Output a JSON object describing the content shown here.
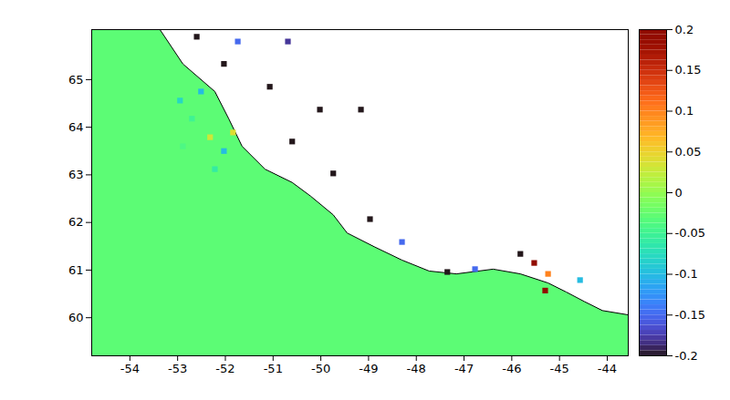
{
  "chart_data": {
    "type": "map",
    "xlim": [
      -54.8,
      -43.56
    ],
    "ylim": [
      59.2,
      66.05
    ],
    "xticks": [
      -54,
      -53,
      -52,
      -51,
      -50,
      -49,
      -48,
      -47,
      -46,
      -45,
      -44
    ],
    "yticks": [
      60,
      61,
      62,
      63,
      64,
      65
    ],
    "color_range": [
      -0.2,
      0.2
    ],
    "color_ticks": [
      -0.2,
      -0.15,
      -0.1,
      -0.05,
      0,
      0.05,
      0.1,
      0.15,
      0.2
    ],
    "sea_value": -0.03,
    "coastline": [
      [
        -53.37,
        66.05
      ],
      [
        -52.89,
        65.33
      ],
      [
        -52.22,
        64.75
      ],
      [
        -51.93,
        64.18
      ],
      [
        -51.65,
        63.6
      ],
      [
        -51.17,
        63.12
      ],
      [
        -50.6,
        62.84
      ],
      [
        -50.21,
        62.55
      ],
      [
        -49.74,
        62.16
      ],
      [
        -49.45,
        61.78
      ],
      [
        -48.88,
        61.49
      ],
      [
        -48.3,
        61.21
      ],
      [
        -47.73,
        60.98
      ],
      [
        -47.16,
        60.92
      ],
      [
        -46.39,
        61.02
      ],
      [
        -45.82,
        60.92
      ],
      [
        -45.24,
        60.73
      ],
      [
        -44.86,
        60.54
      ],
      [
        -44.48,
        60.34
      ],
      [
        -44.1,
        60.15
      ],
      [
        -43.56,
        60.06
      ]
    ],
    "cells": [
      [
        -52.6,
        65.9,
        -0.2
      ],
      [
        -51.74,
        65.8,
        -0.15
      ],
      [
        -50.69,
        65.8,
        -0.18
      ],
      [
        -52.03,
        65.33,
        -0.2
      ],
      [
        -51.07,
        64.85,
        -0.2
      ],
      [
        -50.02,
        64.37,
        -0.2
      ],
      [
        -49.16,
        64.37,
        -0.2
      ],
      [
        -50.6,
        63.7,
        -0.2
      ],
      [
        -49.74,
        63.03,
        -0.2
      ],
      [
        -48.97,
        62.07,
        -0.2
      ],
      [
        -48.3,
        61.59,
        -0.15
      ],
      [
        -47.35,
        60.96,
        -0.2
      ],
      [
        -46.77,
        61.02,
        -0.15
      ],
      [
        -45.82,
        61.34,
        -0.2
      ],
      [
        -45.53,
        61.15,
        0.2
      ],
      [
        -45.24,
        60.92,
        0.1
      ],
      [
        -45.3,
        60.57,
        0.2
      ],
      [
        -44.57,
        60.79,
        -0.1
      ],
      [
        -52.95,
        64.56,
        -0.08
      ],
      [
        -52.7,
        64.18,
        -0.05
      ],
      [
        -52.32,
        63.79,
        0.03
      ],
      [
        -52.03,
        63.5,
        -0.1
      ],
      [
        -52.89,
        63.6,
        -0.04
      ],
      [
        -52.51,
        64.75,
        -0.1
      ],
      [
        -52.22,
        63.12,
        -0.06
      ],
      [
        -51.84,
        63.89,
        0.04
      ]
    ]
  }
}
